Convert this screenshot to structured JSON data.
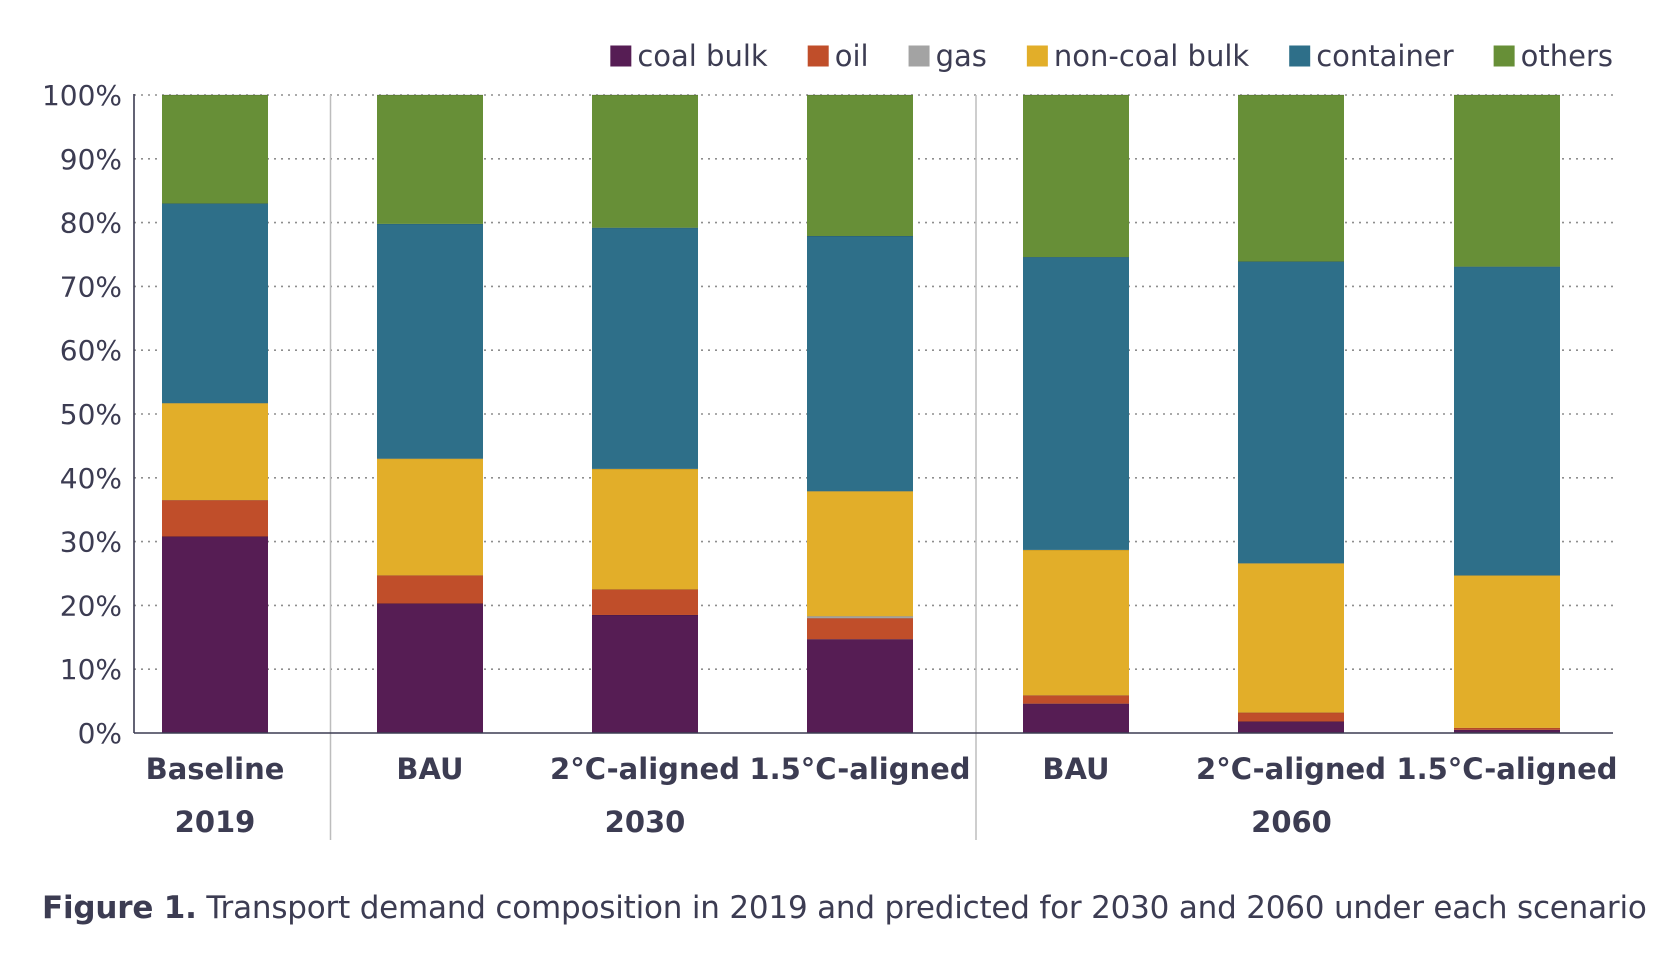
{
  "chart_data": {
    "type": "bar",
    "stacked": true,
    "title": "",
    "xlabel": "",
    "ylabel": "",
    "ylim": [
      0,
      100
    ],
    "y_ticks": [
      "0%",
      "10%",
      "20%",
      "30%",
      "40%",
      "50%",
      "60%",
      "70%",
      "80%",
      "90%",
      "100%"
    ],
    "grid": true,
    "legend_position": "top-right",
    "categories": [
      "Baseline",
      "BAU",
      "2°C-aligned",
      "1.5°C-aligned",
      "BAU",
      "2°C-aligned",
      "1.5°C-aligned"
    ],
    "groups": [
      {
        "label": "2019",
        "start": 0,
        "end": 0
      },
      {
        "label": "2030",
        "start": 1,
        "end": 3
      },
      {
        "label": "2060",
        "start": 4,
        "end": 6
      }
    ],
    "series": [
      {
        "name": "coal bulk",
        "color": "#561d54",
        "values": [
          30.8,
          20.3,
          18.5,
          14.7,
          4.6,
          1.8,
          0.5
        ]
      },
      {
        "name": "oil",
        "color": "#c04e2a",
        "values": [
          5.7,
          4.4,
          4.0,
          3.3,
          1.3,
          1.4,
          0.3
        ]
      },
      {
        "name": "gas",
        "color": "#a3a3a3",
        "values": [
          0.0,
          0.0,
          0.0,
          0.3,
          0.0,
          0.0,
          0.0
        ]
      },
      {
        "name": "non-coal bulk",
        "color": "#e2ae29",
        "values": [
          15.2,
          18.3,
          18.9,
          19.6,
          22.8,
          23.4,
          23.9
        ]
      },
      {
        "name": "container",
        "color": "#2e6f89",
        "values": [
          31.3,
          36.8,
          37.8,
          40.0,
          45.9,
          47.3,
          48.4
        ]
      },
      {
        "name": "others",
        "color": "#678f37",
        "values": [
          17.0,
          20.2,
          20.8,
          22.1,
          25.4,
          26.1,
          26.9
        ]
      }
    ]
  },
  "caption": {
    "label": "Figure 1.",
    "text": " Transport demand composition in 2019 and predicted for 2030 and 2060 under each scenario"
  }
}
